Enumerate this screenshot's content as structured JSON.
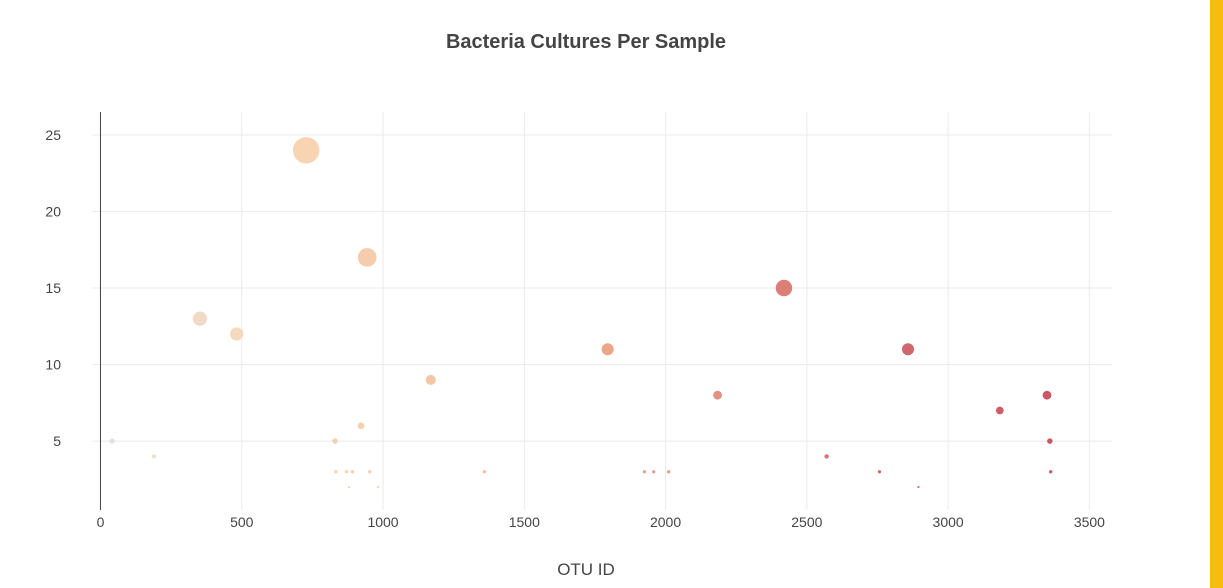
{
  "accent_color": "#f8bc0e",
  "chart_data": {
    "type": "scatter",
    "title": "Bacteria Cultures Per Sample",
    "xlabel": "OTU ID",
    "ylabel": "",
    "xlim": [
      -30,
      3580
    ],
    "ylim": [
      0.5,
      26.5
    ],
    "x_ticks": [
      0,
      500,
      1000,
      1500,
      2000,
      2500,
      3000,
      3500
    ],
    "y_ticks": [
      5,
      10,
      15,
      20,
      25
    ],
    "grid": true,
    "legend": "none",
    "marker_size_encodes": "y value",
    "marker_color_encodes": "OTU ID",
    "color_scale": [
      "#e8dccd",
      "#f7cda7",
      "#f1b48a",
      "#e5886d",
      "#c95256",
      "#c23a48"
    ],
    "points": [
      {
        "x": 41,
        "y": 5
      },
      {
        "x": 189,
        "y": 4
      },
      {
        "x": 352,
        "y": 13
      },
      {
        "x": 482,
        "y": 12
      },
      {
        "x": 728,
        "y": 24
      },
      {
        "x": 830,
        "y": 5
      },
      {
        "x": 833,
        "y": 3
      },
      {
        "x": 871,
        "y": 3
      },
      {
        "x": 880,
        "y": 2
      },
      {
        "x": 892,
        "y": 3
      },
      {
        "x": 922,
        "y": 6
      },
      {
        "x": 944,
        "y": 17
      },
      {
        "x": 953,
        "y": 3
      },
      {
        "x": 982,
        "y": 2
      },
      {
        "x": 1169,
        "y": 9
      },
      {
        "x": 1359,
        "y": 3
      },
      {
        "x": 1795,
        "y": 11
      },
      {
        "x": 1925,
        "y": 3
      },
      {
        "x": 1958,
        "y": 3
      },
      {
        "x": 2011,
        "y": 3
      },
      {
        "x": 2184,
        "y": 8
      },
      {
        "x": 2419,
        "y": 15
      },
      {
        "x": 2570,
        "y": 4
      },
      {
        "x": 2757,
        "y": 3
      },
      {
        "x": 2858,
        "y": 11
      },
      {
        "x": 2895,
        "y": 2
      },
      {
        "x": 3183,
        "y": 7
      },
      {
        "x": 3350,
        "y": 8
      },
      {
        "x": 3360,
        "y": 5
      },
      {
        "x": 3363,
        "y": 3
      }
    ]
  }
}
